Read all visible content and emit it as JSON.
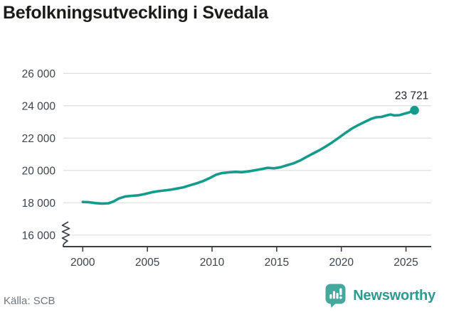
{
  "chart": {
    "title": "Befolkningsutveckling i Svedala",
    "source": "Källa: SCB"
  },
  "branding": {
    "logo_text": "Newsworthy",
    "logo_icon": "newsworthy-barchart-exclamation-icon",
    "brand_color": "#2d9a8f"
  },
  "chart_data": {
    "type": "line",
    "title": "Befolkningsutveckling i Svedala",
    "source": "Källa: SCB",
    "xlabel": "",
    "ylabel": "",
    "grid": "horizontal",
    "legend": "none",
    "axis_break_bottom_left": true,
    "line_color": "#149b8c",
    "grid_color": "#dcdcdc",
    "axis_color": "#3a4149",
    "tick_label_color": "#3d444c",
    "x_ticks": [
      2000,
      2005,
      2010,
      2015,
      2020,
      2025
    ],
    "y_ticks": [
      {
        "value": 16000,
        "label": "16 000"
      },
      {
        "value": 18000,
        "label": "18 000"
      },
      {
        "value": 20000,
        "label": "20 000"
      },
      {
        "value": 22000,
        "label": "22 000"
      },
      {
        "value": 24000,
        "label": "24 000"
      },
      {
        "value": 26000,
        "label": "26 000"
      }
    ],
    "ylim": [
      16000,
      26000
    ],
    "xlim": [
      1998.5,
      2027.3
    ],
    "end_label": "23 721",
    "end_value": 23721,
    "series": [
      {
        "name": "Befolkning",
        "points": [
          [
            2000.0,
            18050
          ],
          [
            2000.5,
            18030
          ],
          [
            2001.0,
            17980
          ],
          [
            2001.5,
            17950
          ],
          [
            2002.0,
            17970
          ],
          [
            2002.4,
            18090
          ],
          [
            2002.8,
            18270
          ],
          [
            2003.3,
            18390
          ],
          [
            2003.8,
            18430
          ],
          [
            2004.3,
            18460
          ],
          [
            2004.8,
            18540
          ],
          [
            2005.3,
            18640
          ],
          [
            2005.8,
            18710
          ],
          [
            2006.3,
            18760
          ],
          [
            2006.8,
            18810
          ],
          [
            2007.3,
            18880
          ],
          [
            2007.8,
            18960
          ],
          [
            2008.3,
            19080
          ],
          [
            2008.8,
            19200
          ],
          [
            2009.3,
            19340
          ],
          [
            2009.8,
            19520
          ],
          [
            2010.3,
            19730
          ],
          [
            2010.8,
            19840
          ],
          [
            2011.3,
            19880
          ],
          [
            2011.8,
            19910
          ],
          [
            2012.3,
            19890
          ],
          [
            2012.8,
            19940
          ],
          [
            2013.3,
            20010
          ],
          [
            2013.8,
            20080
          ],
          [
            2014.3,
            20160
          ],
          [
            2014.8,
            20130
          ],
          [
            2015.3,
            20200
          ],
          [
            2015.8,
            20320
          ],
          [
            2016.3,
            20440
          ],
          [
            2016.8,
            20610
          ],
          [
            2017.3,
            20830
          ],
          [
            2017.8,
            21040
          ],
          [
            2018.3,
            21250
          ],
          [
            2018.8,
            21480
          ],
          [
            2019.3,
            21740
          ],
          [
            2019.8,
            22020
          ],
          [
            2020.3,
            22310
          ],
          [
            2020.8,
            22580
          ],
          [
            2021.3,
            22800
          ],
          [
            2021.8,
            23000
          ],
          [
            2022.3,
            23190
          ],
          [
            2022.7,
            23290
          ],
          [
            2023.1,
            23310
          ],
          [
            2023.5,
            23400
          ],
          [
            2023.8,
            23460
          ],
          [
            2024.1,
            23400
          ],
          [
            2024.5,
            23420
          ],
          [
            2024.8,
            23490
          ],
          [
            2025.2,
            23580
          ],
          [
            2025.66,
            23721
          ]
        ]
      }
    ]
  }
}
